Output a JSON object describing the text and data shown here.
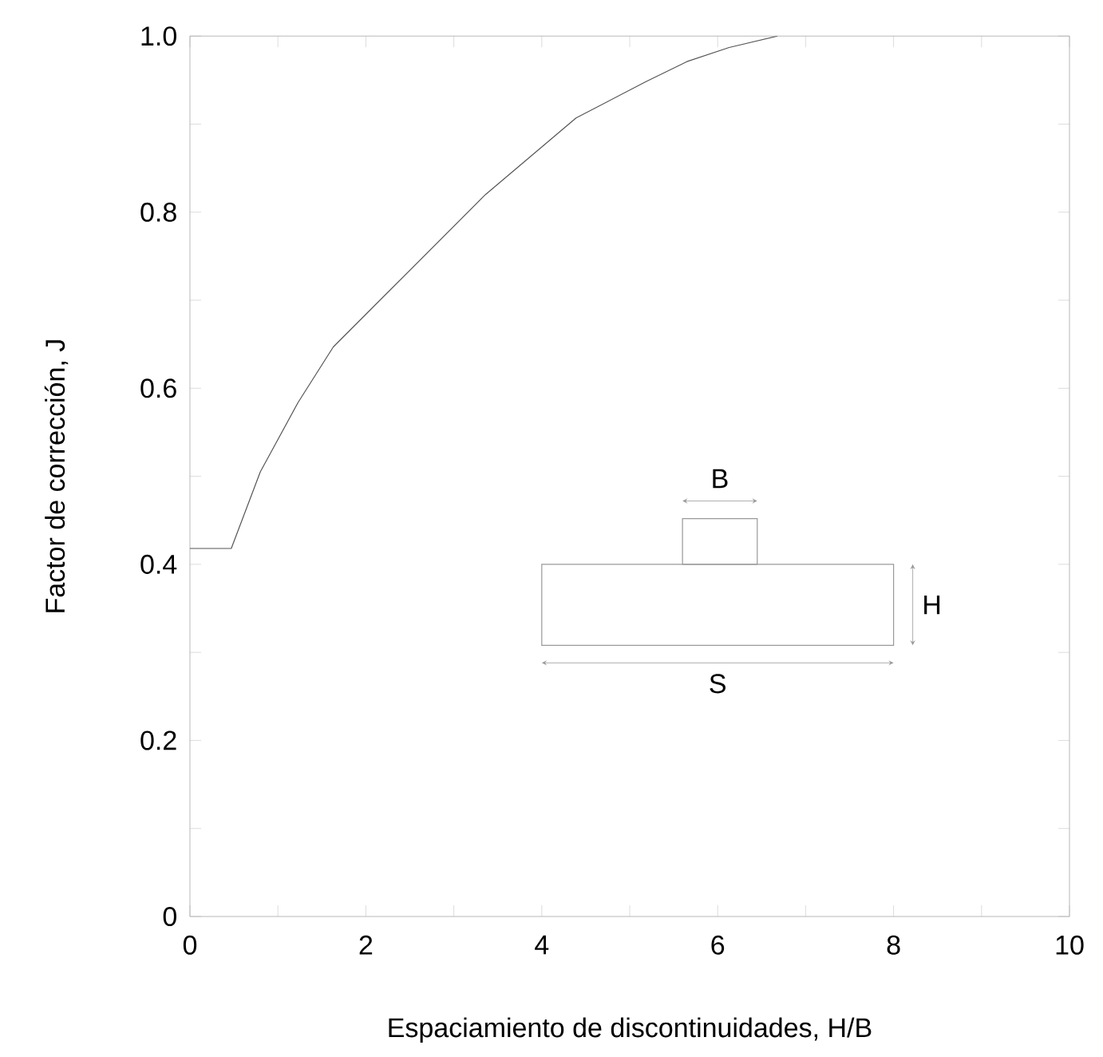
{
  "chart_data": {
    "type": "line",
    "x": [
      0,
      0.47,
      0.8,
      1.23,
      1.63,
      2.26,
      3.36,
      4.39,
      5.18,
      5.65,
      6.13,
      6.68
    ],
    "values": [
      0.418,
      0.418,
      0.505,
      0.584,
      0.647,
      0.71,
      0.82,
      0.907,
      0.948,
      0.971,
      0.987,
      1.0
    ],
    "color": "#555555",
    "xlabel": "Espaciamiento de discontinuidades, H/B",
    "ylabel": "Factor de corrección, J",
    "xlim": [
      0,
      10
    ],
    "ylim": [
      0,
      1
    ],
    "xticks": [
      0,
      {
        "value": 1,
        "label": null
      },
      2,
      {
        "value": 3,
        "label": null
      },
      4,
      {
        "value": 5,
        "label": null
      },
      6,
      {
        "value": 7,
        "label": null
      },
      8,
      {
        "value": 9,
        "label": null
      },
      10
    ],
    "yticks": [
      {
        "value": 0,
        "label": "0"
      },
      {
        "value": 0.1,
        "label": null
      },
      {
        "value": 0.2,
        "label": "0.2"
      },
      {
        "value": 0.3,
        "label": null
      },
      {
        "value": 0.4,
        "label": "0.4"
      },
      {
        "value": 0.5,
        "label": null
      },
      {
        "value": 0.6,
        "label": "0.6"
      },
      {
        "value": 0.7,
        "label": null
      },
      {
        "value": 0.8,
        "label": "0.8"
      },
      {
        "value": 0.9,
        "label": null
      },
      {
        "value": 1,
        "label": "1.0"
      }
    ],
    "annotations": [
      "B",
      "H",
      "S"
    ],
    "grid": false,
    "marker": "none",
    "line_style": "solid"
  }
}
